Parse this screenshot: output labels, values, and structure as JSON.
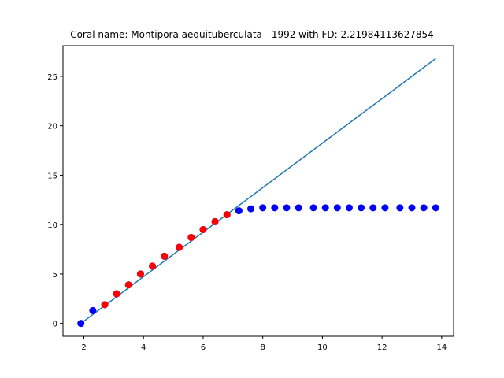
{
  "chart_data": {
    "type": "scatter",
    "title": "Coral name: Montipora aequituberculata - 1992 with FD: 2.21984113627854",
    "xlabel": "",
    "ylabel": "",
    "xlim": [
      1.3,
      14.4
    ],
    "ylim": [
      -1.3,
      28.1
    ],
    "x_ticks": [
      2,
      4,
      6,
      8,
      10,
      12,
      14
    ],
    "y_ticks": [
      0,
      5,
      10,
      15,
      20,
      25
    ],
    "grid": false,
    "colors": {
      "line": "#1f77b4",
      "blue_points": "#0000ff",
      "red_points": "#ff0000"
    },
    "series": [
      {
        "type": "line",
        "color": "#1f77b4",
        "x": [
          1.9,
          13.8
        ],
        "y": [
          0.0,
          26.8
        ]
      },
      {
        "type": "scatter",
        "color": "#0000ff",
        "x": [
          1.9,
          2.3,
          2.7,
          3.1,
          3.5,
          3.9,
          4.3,
          4.7,
          5.2,
          5.6,
          6.0,
          6.4,
          6.8,
          7.2,
          7.6,
          8.0,
          8.4,
          8.8,
          9.2,
          9.7,
          10.1,
          10.5,
          10.9,
          11.3,
          11.7,
          12.1,
          12.6,
          13.0,
          13.4,
          13.8
        ],
        "y": [
          0.0,
          1.3,
          1.9,
          3.0,
          3.9,
          5.0,
          5.8,
          6.8,
          7.7,
          8.7,
          9.5,
          10.3,
          11.0,
          11.4,
          11.6,
          11.7,
          11.7,
          11.7,
          11.7,
          11.7,
          11.7,
          11.7,
          11.7,
          11.7,
          11.7,
          11.7,
          11.7,
          11.7,
          11.7,
          11.7
        ]
      },
      {
        "type": "scatter",
        "color": "#ff0000",
        "x": [
          2.7,
          3.1,
          3.5,
          3.9,
          4.3,
          4.7,
          5.2,
          5.6,
          6.0,
          6.4,
          6.8
        ],
        "y": [
          1.9,
          3.0,
          3.9,
          5.0,
          5.8,
          6.8,
          7.7,
          8.7,
          9.5,
          10.3,
          11.0
        ]
      }
    ]
  }
}
